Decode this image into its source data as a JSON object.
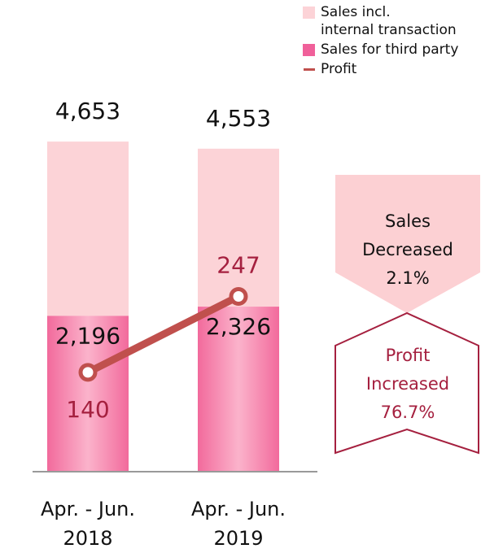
{
  "chart_data": {
    "type": "bar",
    "categories": [
      "Apr. - Jun.\n2018",
      "Apr. - Jun.\n2019"
    ],
    "series": [
      {
        "name": "Sales incl.\ninternal transaction",
        "color": "#fcd3d7",
        "values": [
          4653,
          4553
        ],
        "value_labels": [
          "4,653",
          "4,553"
        ]
      },
      {
        "name": "Sales for third party",
        "color": "#f0609a",
        "values": [
          2196,
          2326
        ],
        "value_labels": [
          "2,196",
          "2,326"
        ]
      },
      {
        "name": "Profit",
        "type": "line",
        "axis": "y2",
        "color": "#c0504d",
        "values": [
          140,
          247
        ]
      }
    ],
    "ylim": [
      0,
      4700
    ],
    "y2lim": [
      0,
      470
    ],
    "legend": "top-right",
    "annotations": [
      "Sales\nDecreased\n2.1%",
      "Profit\nIncreased\n76.7%"
    ]
  }
}
